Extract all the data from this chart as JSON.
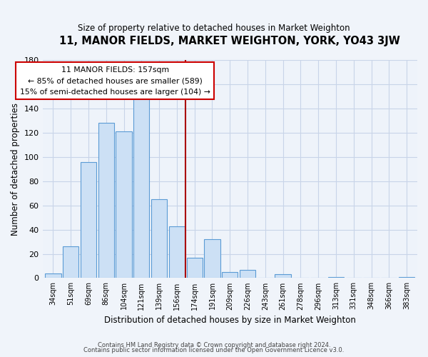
{
  "title": "11, MANOR FIELDS, MARKET WEIGHTON, YORK, YO43 3JW",
  "subtitle": "Size of property relative to detached houses in Market Weighton",
  "xlabel": "Distribution of detached houses by size in Market Weighton",
  "ylabel": "Number of detached properties",
  "bar_labels": [
    "34sqm",
    "51sqm",
    "69sqm",
    "86sqm",
    "104sqm",
    "121sqm",
    "139sqm",
    "156sqm",
    "174sqm",
    "191sqm",
    "209sqm",
    "226sqm",
    "243sqm",
    "261sqm",
    "278sqm",
    "296sqm",
    "313sqm",
    "331sqm",
    "348sqm",
    "366sqm",
    "383sqm"
  ],
  "bar_values": [
    4,
    26,
    96,
    128,
    121,
    150,
    65,
    43,
    17,
    32,
    5,
    7,
    0,
    3,
    0,
    0,
    1,
    0,
    0,
    0,
    1
  ],
  "bar_color": "#cce0f5",
  "bar_edge_color": "#5b9bd5",
  "annotation_title": "11 MANOR FIELDS: 157sqm",
  "annotation_line1": "← 85% of detached houses are smaller (589)",
  "annotation_line2": "15% of semi-detached houses are larger (104) →",
  "annotation_box_color": "#ffffff",
  "annotation_box_edge": "#cc0000",
  "vline_color": "#aa0000",
  "vline_x": 7.5,
  "ylim": [
    0,
    180
  ],
  "yticks": [
    0,
    20,
    40,
    60,
    80,
    100,
    120,
    140,
    160,
    180
  ],
  "footer1": "Contains HM Land Registry data © Crown copyright and database right 2024.",
  "footer2": "Contains public sector information licensed under the Open Government Licence v3.0.",
  "bg_color": "#f0f4fa",
  "plot_bg_color": "#eef3fa",
  "grid_color": "#c8d4e8"
}
